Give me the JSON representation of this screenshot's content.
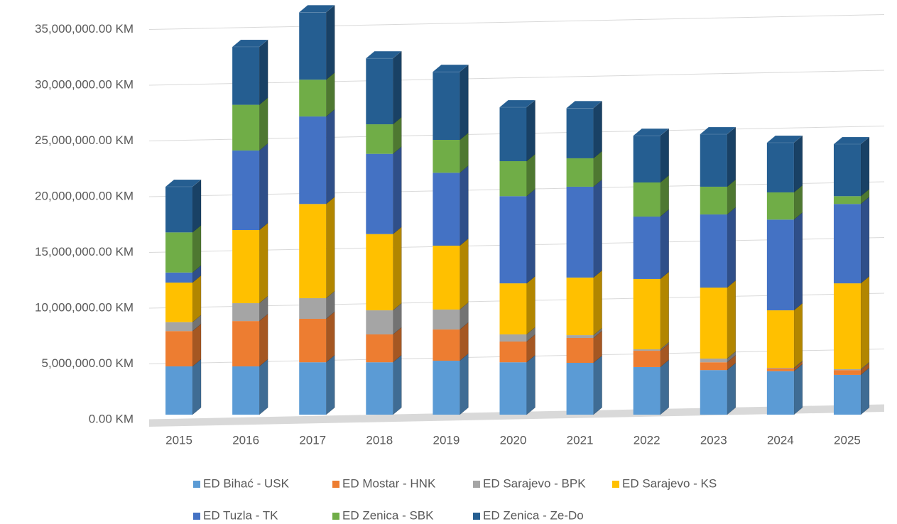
{
  "chart_data": {
    "type": "bar3d-stacked",
    "categories": [
      "2015",
      "2016",
      "2017",
      "2018",
      "2019",
      "2020",
      "2021",
      "2022",
      "2023",
      "2024",
      "2025"
    ],
    "series": [
      {
        "name": "ED Bihać - USK",
        "color": "#5b9bd5",
        "values": [
          4330000,
          4330000,
          4700000,
          4700000,
          4840000,
          4700000,
          4650000,
          4270000,
          4000000,
          3900000,
          3570000
        ]
      },
      {
        "name": "ED Mostar - HNK",
        "color": "#ed7d31",
        "values": [
          3170000,
          4070000,
          3900000,
          2500000,
          2800000,
          1860000,
          2230000,
          1460000,
          700000,
          240000,
          430000
        ]
      },
      {
        "name": "ED Sarajevo - BPK",
        "color": "#a5a5a5",
        "values": [
          800000,
          1600000,
          1850000,
          2160000,
          1790000,
          640000,
          250000,
          130000,
          330000,
          60000,
          80000
        ]
      },
      {
        "name": "ED Sarajevo - KS",
        "color": "#ffc000",
        "values": [
          3550000,
          6560000,
          8450000,
          6840000,
          5730000,
          4580000,
          5170000,
          6310000,
          6370000,
          5160000,
          7700000
        ]
      },
      {
        "name": "ED Tuzla - TK",
        "color": "#4472c4",
        "values": [
          900000,
          7140000,
          7850000,
          7200000,
          6540000,
          7820000,
          8150000,
          5600000,
          6560000,
          8140000,
          7120000
        ]
      },
      {
        "name": "ED Zenica - SBK",
        "color": "#70ad47",
        "values": [
          3600000,
          4100000,
          3300000,
          2650000,
          2950000,
          3140000,
          2550000,
          3060000,
          2490000,
          2440000,
          700000
        ]
      },
      {
        "name": "ED Zenica - Ze-Do",
        "color": "#255e91",
        "values": [
          4100000,
          5200000,
          6050000,
          5920000,
          6110000,
          4840000,
          4500000,
          4200000,
          4710000,
          4460000,
          4670000
        ]
      }
    ],
    "ylim": [
      0,
      36500000
    ],
    "yticks": [
      {
        "value": 0,
        "label": "0.00 KM"
      },
      {
        "value": 5000000,
        "label": "5,000,000.00 KM"
      },
      {
        "value": 10000000,
        "label": "10,000,000.00 KM"
      },
      {
        "value": 15000000,
        "label": "15,000,000.00 KM"
      },
      {
        "value": 20000000,
        "label": "20,000,000.00 KM"
      },
      {
        "value": 25000000,
        "label": "25,000,000.00 KM"
      },
      {
        "value": 30000000,
        "label": "30,000,000.00 KM"
      },
      {
        "value": 35000000,
        "label": "35,000,000.00 KM"
      }
    ],
    "grid": true,
    "legend": "bottom"
  }
}
